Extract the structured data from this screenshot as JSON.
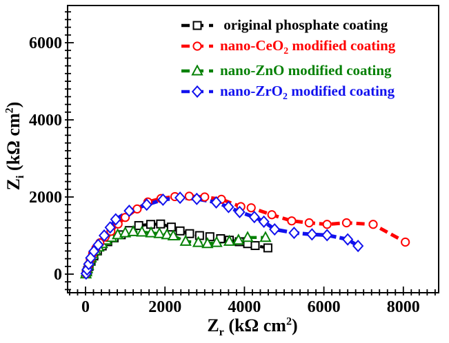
{
  "figure": {
    "background": "#ffffff",
    "frame_color": "#000000"
  },
  "axes": {
    "x_label": {
      "sym": "Z",
      "sub": "r",
      "unit_pre": " (kΩ cm",
      "sup": "2",
      "unit_post": ")"
    },
    "y_label": {
      "sym": "Z",
      "sub": "i",
      "unit_pre": " (kΩ cm",
      "sup": "2",
      "unit_post": ")"
    },
    "x_tick_labels": [
      "0",
      "2000",
      "4000",
      "6000",
      "8000"
    ],
    "y_tick_labels": [
      "0",
      "2000",
      "4000",
      "6000"
    ]
  },
  "legend": {
    "items": [
      {
        "pre": "original phosphate coating",
        "sub": "",
        "post": ""
      },
      {
        "pre": "nano-CeO",
        "sub": "2",
        "post": " modified coating"
      },
      {
        "pre": "nano-ZnO",
        "sub": "",
        "post": " modified coating"
      },
      {
        "pre": "nano-ZrO",
        "sub": "2",
        "post": " modified coating"
      }
    ]
  },
  "chart_data": {
    "type": "line",
    "title": "",
    "xlabel": "Zr (kOhm cm2)",
    "ylabel": "Zi (kOhm cm2)",
    "xlim": [
      -450,
      8890
    ],
    "ylim": [
      -480,
      6970
    ],
    "x_major_ticks": [
      0,
      2000,
      4000,
      6000,
      8000
    ],
    "y_major_ticks": [
      0,
      2000,
      4000,
      6000
    ],
    "minor_tick_step": 200,
    "grid": false,
    "legend_position": "top-right-inside",
    "series": [
      {
        "name": "original phosphate coating",
        "color": "#000000",
        "marker": "square",
        "line_width": 4.3,
        "dash": "10 6",
        "points": [
          [
            20,
            10
          ],
          [
            50,
            90
          ],
          [
            90,
            200
          ],
          [
            140,
            330
          ],
          [
            210,
            470
          ],
          [
            300,
            600
          ],
          [
            420,
            730
          ],
          [
            560,
            840
          ],
          [
            720,
            940
          ],
          [
            900,
            1020
          ],
          [
            1100,
            1130
          ],
          [
            1340,
            1260
          ],
          [
            1640,
            1290
          ],
          [
            1890,
            1300
          ],
          [
            2160,
            1220
          ],
          [
            2380,
            1120
          ],
          [
            2620,
            1050
          ],
          [
            2870,
            1000
          ],
          [
            3130,
            970
          ],
          [
            3400,
            920
          ],
          [
            3620,
            880
          ],
          [
            3870,
            840
          ],
          [
            4080,
            790
          ],
          [
            4270,
            740
          ],
          [
            4590,
            680
          ]
        ]
      },
      {
        "name": "nano-ZnO modified coating",
        "color": "#068106",
        "marker": "triangle-up",
        "line_width": 4.3,
        "dash": "10 6",
        "points": [
          [
            10,
            5
          ],
          [
            25,
            60
          ],
          [
            45,
            140
          ],
          [
            70,
            230
          ],
          [
            100,
            330
          ],
          [
            140,
            420
          ],
          [
            190,
            520
          ],
          [
            250,
            610
          ],
          [
            330,
            700
          ],
          [
            420,
            790
          ],
          [
            530,
            880
          ],
          [
            660,
            950
          ],
          [
            810,
            1020
          ],
          [
            1000,
            1070
          ],
          [
            1200,
            1100
          ],
          [
            1420,
            1090
          ],
          [
            1650,
            1070
          ],
          [
            1860,
            1050
          ],
          [
            2050,
            1020
          ],
          [
            2210,
            990
          ],
          [
            2520,
            850
          ],
          [
            2840,
            820
          ],
          [
            3070,
            790
          ],
          [
            3300,
            820
          ],
          [
            3620,
            850
          ],
          [
            3850,
            880
          ],
          [
            4080,
            950
          ],
          [
            4530,
            950
          ]
        ]
      },
      {
        "name": "nano-CeO2 modified coating",
        "color": "#ff0000",
        "marker": "circle",
        "line_width": 5,
        "dash": "12 6",
        "points": [
          [
            15,
            15
          ],
          [
            40,
            110
          ],
          [
            75,
            240
          ],
          [
            120,
            390
          ],
          [
            180,
            530
          ],
          [
            260,
            670
          ],
          [
            360,
            810
          ],
          [
            490,
            960
          ],
          [
            640,
            1110
          ],
          [
            820,
            1300
          ],
          [
            1000,
            1470
          ],
          [
            1300,
            1690
          ],
          [
            1570,
            1870
          ],
          [
            1900,
            1960
          ],
          [
            2250,
            2010
          ],
          [
            2610,
            2020
          ],
          [
            3000,
            2000
          ],
          [
            3420,
            1940
          ],
          [
            3910,
            1750
          ],
          [
            4170,
            1720
          ],
          [
            4690,
            1540
          ],
          [
            5190,
            1380
          ],
          [
            5630,
            1330
          ],
          [
            6080,
            1290
          ],
          [
            6570,
            1330
          ],
          [
            7240,
            1290
          ],
          [
            8050,
            830
          ]
        ]
      },
      {
        "name": "nano-ZrO2 modified coating",
        "color": "#1111ee",
        "marker": "diamond",
        "line_width": 5.4,
        "dash": "13 5",
        "points": [
          [
            15,
            15
          ],
          [
            40,
            120
          ],
          [
            80,
            260
          ],
          [
            130,
            420
          ],
          [
            210,
            590
          ],
          [
            320,
            760
          ],
          [
            470,
            1000
          ],
          [
            620,
            1210
          ],
          [
            760,
            1420
          ],
          [
            1100,
            1640
          ],
          [
            1540,
            1800
          ],
          [
            1950,
            1930
          ],
          [
            2380,
            1980
          ],
          [
            2800,
            1950
          ],
          [
            3290,
            1860
          ],
          [
            3600,
            1740
          ],
          [
            3880,
            1610
          ],
          [
            4250,
            1480
          ],
          [
            4490,
            1360
          ],
          [
            4760,
            1160
          ],
          [
            5250,
            1070
          ],
          [
            5700,
            1030
          ],
          [
            6080,
            1010
          ],
          [
            6600,
            900
          ],
          [
            6860,
            730
          ]
        ]
      }
    ],
    "legend_series_order": [
      0,
      2,
      1,
      3
    ]
  }
}
